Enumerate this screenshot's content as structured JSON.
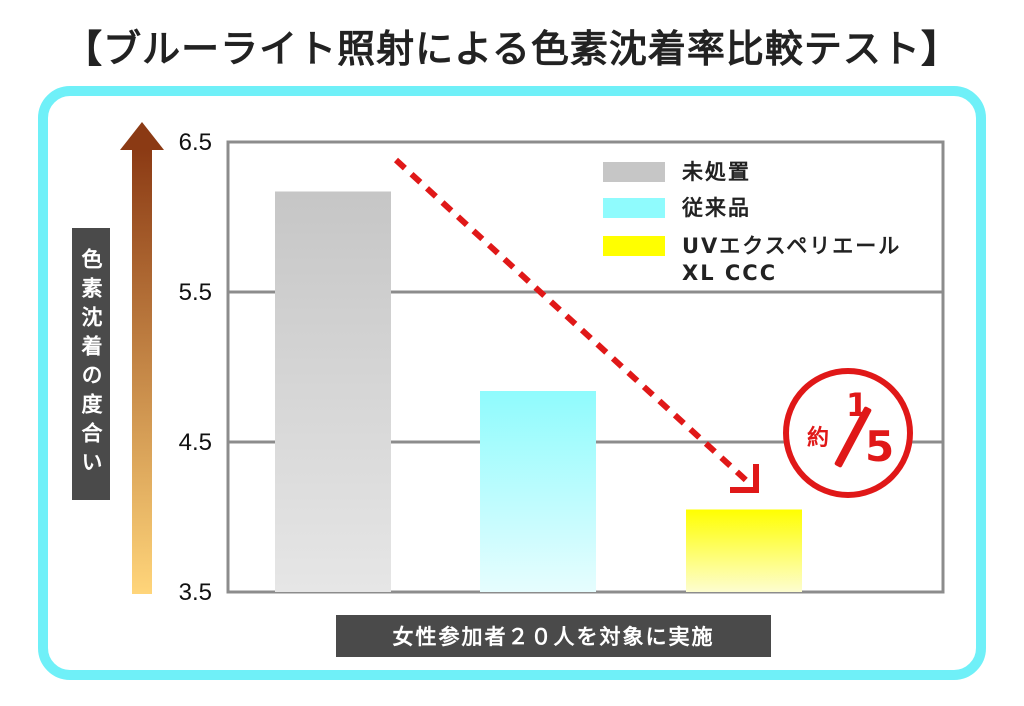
{
  "title": "【ブルーライト照射による色素沈着率比較テスト】",
  "chart_data": {
    "type": "bar",
    "title": "【ブルーライト照射による色素沈着率比較テスト】",
    "ylabel": "色素沈着の度合い",
    "xlabel": "女性参加者２０人を対象に実施",
    "ylim": [
      3.5,
      6.5
    ],
    "yticks": [
      "6.5",
      "5.5",
      "4.5",
      "3.5"
    ],
    "grid": true,
    "legend_position": "top-right",
    "series": [
      {
        "name": "未処置",
        "value": 6.17,
        "color_top": "#c6c6c6",
        "color_bottom": "#e6e6e6"
      },
      {
        "name": "従来品",
        "value": 4.84,
        "color_top": "#8ffbfd",
        "color_bottom": "#e6fdfe"
      },
      {
        "name": "UVエクスペリエール\nXL CCC",
        "value": 4.05,
        "color_top": "#ffff00",
        "color_bottom": "#fdfdd0"
      }
    ],
    "annotation": {
      "prefix": "約",
      "numerator": "1",
      "denominator": "5"
    }
  },
  "colors": {
    "frame": "#6ff0f8",
    "accent_red": "#e01818",
    "dark_box": "#4a4a4a",
    "grid": "#8c8c8c"
  }
}
